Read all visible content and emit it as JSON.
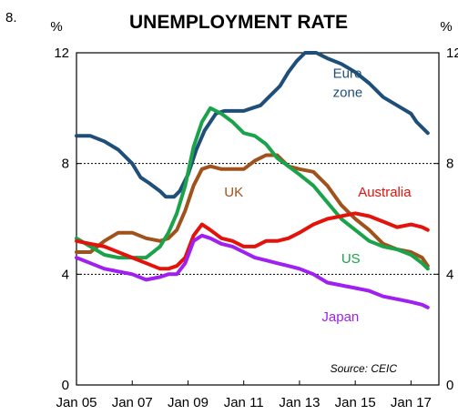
{
  "figure_number": "8.",
  "chart_data": {
    "type": "line",
    "title": "UNEMPLOYMENT RATE",
    "unit_left": "%",
    "unit_right": "%",
    "ylim": [
      0,
      12
    ],
    "yticks": [
      "0",
      "4",
      "8",
      "12"
    ],
    "xlim": [
      2005.0,
      2018.0
    ],
    "xticks": [
      {
        "label": "Jan 05",
        "x": 2005.0
      },
      {
        "label": "Jan 07",
        "x": 2007.0
      },
      {
        "label": "Jan 09",
        "x": 2009.0
      },
      {
        "label": "Jan 11",
        "x": 2011.0
      },
      {
        "label": "Jan 13",
        "x": 2013.0
      },
      {
        "label": "Jan 15",
        "x": 2015.0
      },
      {
        "label": "Jan 17",
        "x": 2017.0
      }
    ],
    "gridlines": [
      4,
      8
    ],
    "source": "Source: CEIC",
    "series": [
      {
        "name": "Euro zone",
        "label_lines": [
          "Euro",
          "zone"
        ],
        "color": "#1f4e79",
        "x": [
          2005.0,
          2005.5,
          2006.0,
          2006.5,
          2007.0,
          2007.3,
          2007.6,
          2008.0,
          2008.2,
          2008.5,
          2008.7,
          2009.0,
          2009.3,
          2009.6,
          2010.0,
          2010.3,
          2010.6,
          2011.0,
          2011.3,
          2011.6,
          2011.9,
          2012.3,
          2012.6,
          2012.9,
          2013.2,
          2013.6,
          2014.0,
          2014.5,
          2015.0,
          2015.5,
          2016.0,
          2016.5,
          2017.0,
          2017.2,
          2017.6
        ],
        "y": [
          9.0,
          9.0,
          8.8,
          8.5,
          8.0,
          7.5,
          7.3,
          7.0,
          6.8,
          6.8,
          7.0,
          7.6,
          8.5,
          9.2,
          9.8,
          9.9,
          9.9,
          9.9,
          10.0,
          10.1,
          10.4,
          10.8,
          11.3,
          11.7,
          12.0,
          12.0,
          11.8,
          11.6,
          11.3,
          10.9,
          10.4,
          10.1,
          9.8,
          9.5,
          9.1
        ]
      },
      {
        "name": "UK",
        "label_lines": [
          "UK"
        ],
        "color": "#a0521c",
        "x": [
          2005.0,
          2005.5,
          2006.0,
          2006.5,
          2007.0,
          2007.5,
          2008.0,
          2008.3,
          2008.6,
          2008.9,
          2009.2,
          2009.5,
          2009.8,
          2010.2,
          2010.6,
          2011.0,
          2011.4,
          2011.8,
          2012.2,
          2012.6,
          2013.0,
          2013.5,
          2014.0,
          2014.5,
          2015.0,
          2015.5,
          2016.0,
          2016.5,
          2017.0,
          2017.4,
          2017.6
        ],
        "y": [
          4.8,
          4.8,
          5.2,
          5.5,
          5.5,
          5.3,
          5.2,
          5.3,
          5.6,
          6.3,
          7.2,
          7.8,
          7.9,
          7.8,
          7.8,
          7.8,
          8.1,
          8.3,
          8.3,
          7.9,
          7.8,
          7.7,
          7.2,
          6.5,
          6.0,
          5.6,
          5.1,
          4.9,
          4.8,
          4.6,
          4.3
        ]
      },
      {
        "name": "Australia",
        "label_lines": [
          "Australia"
        ],
        "color": "#e3120b",
        "x": [
          2005.0,
          2005.5,
          2006.0,
          2006.5,
          2007.0,
          2007.5,
          2008.0,
          2008.3,
          2008.6,
          2008.9,
          2009.2,
          2009.5,
          2009.8,
          2010.2,
          2010.6,
          2011.0,
          2011.4,
          2011.8,
          2012.2,
          2012.6,
          2013.0,
          2013.5,
          2014.0,
          2014.5,
          2015.0,
          2015.5,
          2016.0,
          2016.5,
          2017.0,
          2017.4,
          2017.6
        ],
        "y": [
          5.2,
          5.1,
          5.0,
          4.8,
          4.6,
          4.4,
          4.2,
          4.2,
          4.3,
          4.6,
          5.4,
          5.8,
          5.6,
          5.3,
          5.2,
          5.0,
          5.0,
          5.2,
          5.2,
          5.3,
          5.5,
          5.8,
          6.0,
          6.1,
          6.2,
          6.1,
          5.9,
          5.7,
          5.8,
          5.7,
          5.6
        ]
      },
      {
        "name": "US",
        "label_lines": [
          "US"
        ],
        "color": "#1aa34a",
        "x": [
          2005.0,
          2005.5,
          2006.0,
          2006.5,
          2007.0,
          2007.5,
          2008.0,
          2008.3,
          2008.6,
          2008.9,
          2009.2,
          2009.5,
          2009.8,
          2010.2,
          2010.6,
          2011.0,
          2011.4,
          2011.8,
          2012.2,
          2012.6,
          2013.0,
          2013.5,
          2014.0,
          2014.5,
          2015.0,
          2015.5,
          2016.0,
          2016.5,
          2017.0,
          2017.4,
          2017.6
        ],
        "y": [
          5.3,
          5.0,
          4.7,
          4.6,
          4.6,
          4.6,
          5.0,
          5.5,
          6.2,
          7.2,
          8.6,
          9.5,
          10.0,
          9.8,
          9.5,
          9.1,
          9.0,
          8.7,
          8.2,
          7.9,
          7.6,
          7.2,
          6.6,
          6.0,
          5.6,
          5.2,
          5.0,
          4.9,
          4.7,
          4.4,
          4.2
        ]
      },
      {
        "name": "Japan",
        "label_lines": [
          "Japan"
        ],
        "color": "#a020f0",
        "x": [
          2005.0,
          2005.5,
          2006.0,
          2006.5,
          2007.0,
          2007.5,
          2008.0,
          2008.3,
          2008.6,
          2008.9,
          2009.2,
          2009.5,
          2009.8,
          2010.2,
          2010.6,
          2011.0,
          2011.4,
          2011.8,
          2012.2,
          2012.6,
          2013.0,
          2013.5,
          2014.0,
          2014.5,
          2015.0,
          2015.5,
          2016.0,
          2016.5,
          2017.0,
          2017.4,
          2017.6
        ],
        "y": [
          4.6,
          4.4,
          4.2,
          4.1,
          4.0,
          3.8,
          3.9,
          4.0,
          4.0,
          4.4,
          5.2,
          5.4,
          5.3,
          5.1,
          5.0,
          4.8,
          4.6,
          4.5,
          4.4,
          4.3,
          4.2,
          4.0,
          3.7,
          3.6,
          3.5,
          3.4,
          3.2,
          3.1,
          3.0,
          2.9,
          2.8
        ]
      }
    ]
  }
}
